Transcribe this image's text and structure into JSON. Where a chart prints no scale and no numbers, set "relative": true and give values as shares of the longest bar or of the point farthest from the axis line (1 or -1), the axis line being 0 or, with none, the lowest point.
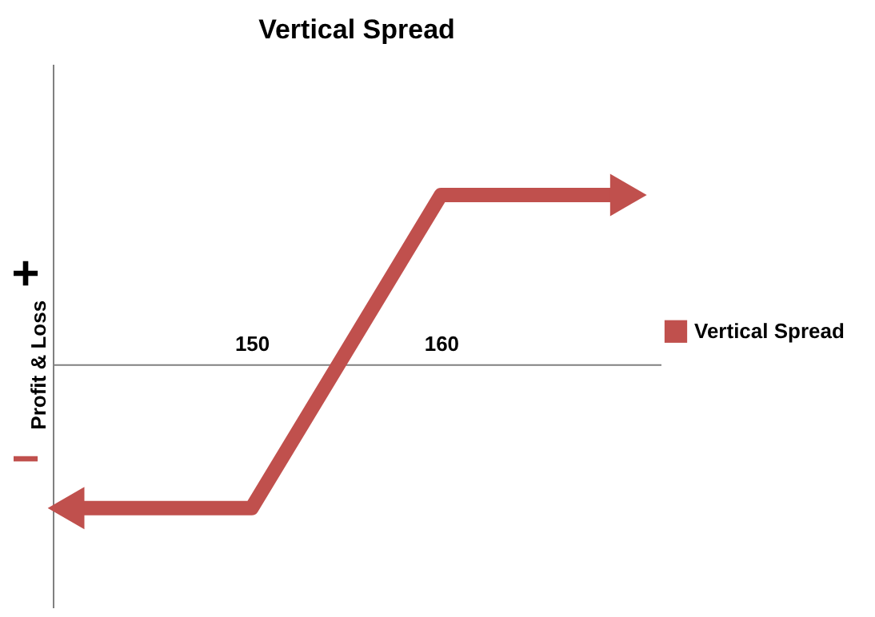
{
  "chart_data": {
    "type": "line",
    "title": "Vertical Spread",
    "ylabel": "Profit & Loss",
    "relative": true,
    "x": [
      140.2,
      150,
      160,
      169.9
    ],
    "series": [
      {
        "name": "Vertical Spread",
        "color": "#c0504d",
        "values": [
          -0.85,
          -0.85,
          1,
          1
        ]
      }
    ],
    "xlim": [
      139.5,
      171.6
    ],
    "xticks": [
      150,
      160
    ],
    "tick_labels": "x",
    "grid": false,
    "legend": "right",
    "line_style": "solid",
    "annotations": [
      "+",
      "−"
    ]
  }
}
